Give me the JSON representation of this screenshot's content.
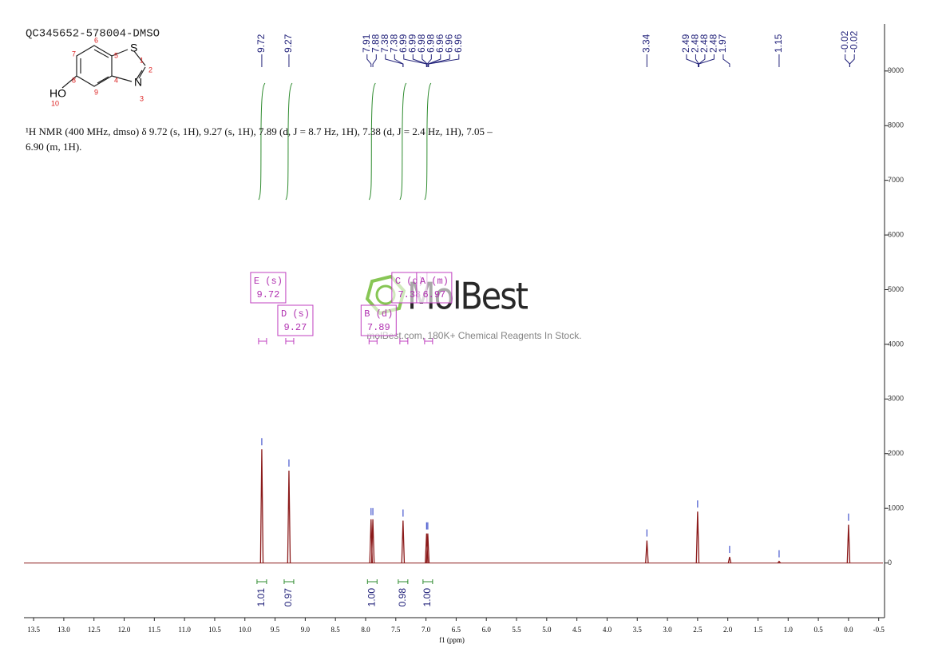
{
  "chart_data": {
    "type": "spectrum",
    "title": "QC345652-578004-DMSO",
    "description": "¹H NMR (400 MHz, dmso) δ 9.72 (s, 1H), 9.27 (s, 1H), 7.89 (d, J = 8.7 Hz, 1H), 7.38 (d, J = 2.4 Hz, 1H), 7.05 – 6.90 (m, 1H).",
    "x_label": "f1 (ppm)",
    "xlim": [
      13.66,
      -0.57
    ],
    "ylim": [
      -1000,
      9860
    ],
    "xticks": [
      13.5,
      {
        "value": 13,
        "label": "13.0"
      },
      12.5,
      {
        "value": 12,
        "label": "12.0"
      },
      11.5,
      {
        "value": 11,
        "label": "11.0"
      },
      10.5,
      {
        "value": 10,
        "label": "10.0"
      },
      9.5,
      {
        "value": 9,
        "label": "9.0"
      },
      8.5,
      {
        "value": 8,
        "label": "8.0"
      },
      7.5,
      {
        "value": 7,
        "label": "7.0"
      },
      6.5,
      {
        "value": 6,
        "label": "6.0"
      },
      5.5,
      {
        "value": 5,
        "label": "5.0"
      },
      4.5,
      {
        "value": 4,
        "label": "4.0"
      },
      3.5,
      {
        "value": 3,
        "label": "3.0"
      },
      2.5,
      {
        "value": 2,
        "label": "2.0"
      },
      1.5,
      {
        "value": 1,
        "label": "1.0"
      },
      0.5,
      {
        "value": 0,
        "label": "0.0"
      },
      -0.5
    ],
    "yticks": [
      0,
      1000,
      2000,
      3000,
      4000,
      5000,
      6000,
      7000,
      8000,
      9000
    ],
    "color": "#8b1a1a",
    "peaks": {
      "x": [
        9.72,
        9.27,
        7.91,
        7.88,
        7.38,
        6.99,
        6.97,
        3.34,
        2.5,
        1.97,
        1.15,
        0.0
      ],
      "values": [
        2080,
        1690,
        800,
        800,
        775,
        540,
        540,
        410,
        940,
        110,
        30,
        700
      ]
    },
    "peak_labels": [
      9.72,
      9.27,
      7.91,
      7.88,
      7.38,
      7.38,
      6.99,
      6.99,
      6.98,
      6.98,
      6.96,
      6.96,
      6.96,
      3.34,
      2.49,
      2.48,
      2.48,
      2.48,
      1.97,
      1.15,
      -0.02,
      -0.02
    ],
    "integrals": {
      "x": [
        9.72,
        9.27,
        7.89,
        7.38,
        6.97
      ],
      "values": [
        1.01,
        0.97,
        1,
        0.98,
        1
      ],
      "value_labels": [
        "1.01",
        "0.97",
        "1.00",
        "0.98",
        "1.00"
      ],
      "color": "#2e8b2e"
    },
    "multiplets": [
      {
        "label": "E (s)",
        "shift": "9.72"
      },
      {
        "label": "D (s)",
        "shift": "9.27"
      },
      {
        "label": "C (d)",
        "shift": "7.38"
      },
      {
        "label": "B (d)",
        "shift": "7.89"
      },
      {
        "label": "A (m)",
        "shift": "6.97"
      }
    ],
    "structure": {
      "atoms": [
        "S",
        "N",
        "HO"
      ],
      "numbers": [
        "1",
        "2",
        "3",
        "4",
        "5",
        "6",
        "7",
        "8",
        "9",
        "10"
      ]
    },
    "watermark": {
      "brand": "MolBest",
      "tagline": "molBest.com, 180K+ Chemical Reagents In Stock."
    }
  }
}
